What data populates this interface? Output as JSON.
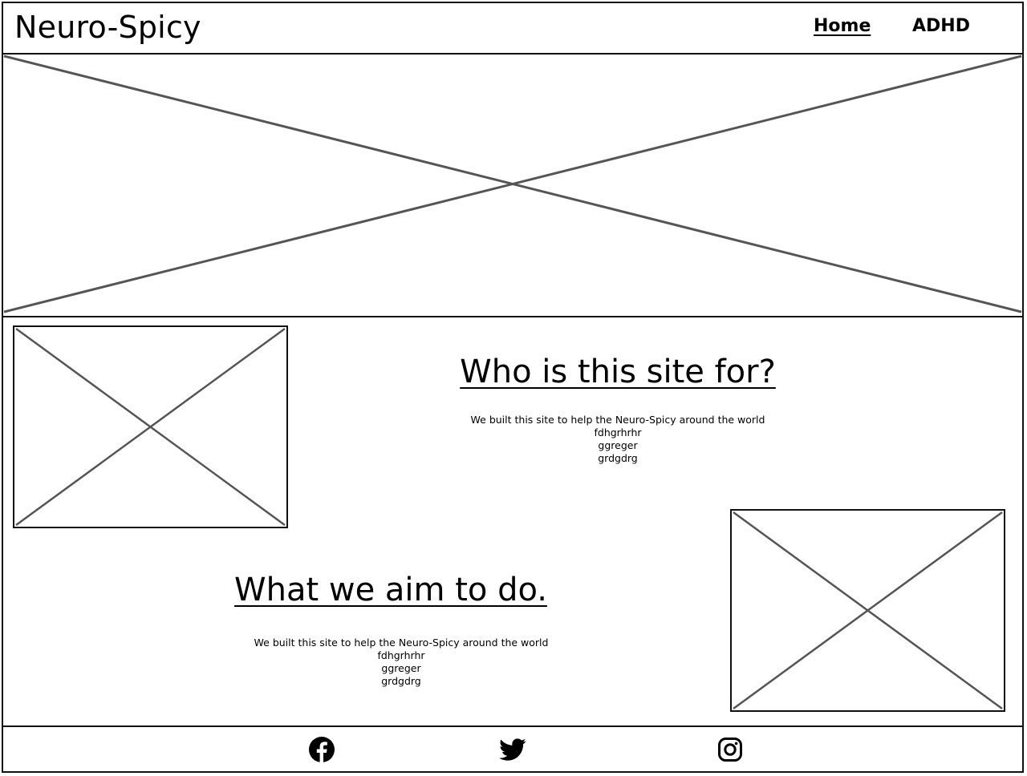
{
  "header": {
    "logo": "Neuro-Spicy",
    "nav": [
      {
        "label": "Home",
        "active": true
      },
      {
        "label": "ADHD",
        "active": false
      }
    ]
  },
  "sections": [
    {
      "title": "Who is this site for?",
      "lines": [
        "We built this site to help the Neuro-Spicy around the world",
        "fdhgrhrhr",
        "ggreger",
        "grdgdrg"
      ]
    },
    {
      "title": "What we aim to do.",
      "lines": [
        "We built this site to help the Neuro-Spicy around the world",
        "fdhgrhrhr",
        "ggreger",
        "grdgdrg"
      ]
    }
  ],
  "footer": {
    "icons": [
      "facebook-icon",
      "twitter-icon",
      "instagram-icon"
    ]
  },
  "colors": {
    "border": "#111111",
    "placeholder_line": "#555555",
    "text": "#000000"
  }
}
